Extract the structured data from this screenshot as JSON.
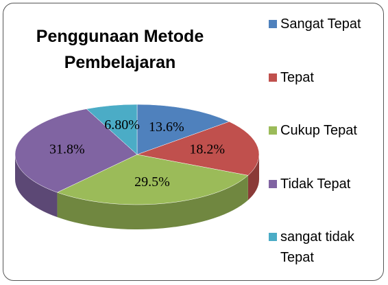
{
  "chart_data": {
    "type": "pie",
    "title": "Penggunaan Metode Pembelajaran",
    "categories": [
      "Sangat Tepat",
      "Tepat",
      "Cukup Tepat",
      "Tidak Tepat",
      "sangat tidak Tepat"
    ],
    "values": [
      13.6,
      18.2,
      29.5,
      31.8,
      6.8
    ],
    "value_labels": [
      "13.6%",
      "18.2%",
      "29.5%",
      "31.8%",
      "6.80%"
    ],
    "colors": [
      "#4f81bd",
      "#c0504d",
      "#9bbb59",
      "#8064a2",
      "#4bacc6"
    ],
    "legend": "right"
  }
}
